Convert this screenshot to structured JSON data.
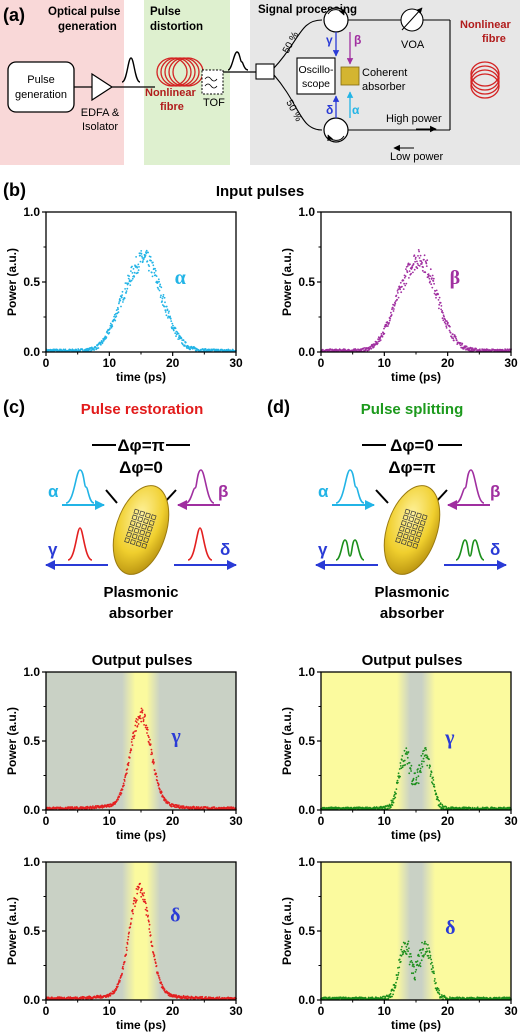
{
  "panel_a": {
    "label": "(a)",
    "sec1": [
      "Optical pulse",
      "generation"
    ],
    "sec2": [
      "Pulse",
      "distortion"
    ],
    "sec3": "Signal processing",
    "pulse_gen": [
      "Pulse",
      "generation"
    ],
    "edfa": [
      "EDFA &",
      "Isolator"
    ],
    "nlf1": [
      "Nonlinear",
      "fibre"
    ],
    "tof": "TOF",
    "split1": "50 %",
    "split2": "50 %",
    "osc": [
      "Oscillo-",
      "scope"
    ],
    "absorber": [
      "Coherent",
      "absorber"
    ],
    "voa": "VOA",
    "nlf2": [
      "Nonlinear",
      "fibre"
    ],
    "high": "High  power",
    "low": "Low power",
    "greek": {
      "gamma": "γ",
      "beta": "β",
      "delta": "δ",
      "alpha": "α"
    },
    "colors": {
      "pink": "#f9d8d8",
      "green": "#def0cf",
      "gray": "#e7e7e7",
      "red": "#b11c1c",
      "absorber": "#d4b531"
    }
  },
  "panel_b": {
    "label": "(b)",
    "title": "Input pulses"
  },
  "panel_c": {
    "label": "(c)",
    "title": "Pulse restoration",
    "phase_top": "Δφ=π",
    "phase_bottom": "Δφ=0",
    "absorber": [
      "Plasmonic",
      "absorber"
    ],
    "title_color": "#e21b1b"
  },
  "panel_d": {
    "label": "(d)",
    "title": "Pulse splitting",
    "phase_top": "Δφ=0",
    "phase_bottom": "Δφ=π",
    "absorber": [
      "Plasmonic",
      "absorber"
    ],
    "title_color": "#1d9a1d"
  },
  "output_title": "Output pulses",
  "chart_data": [
    {
      "id": "alpha",
      "type": "scatter",
      "series": [
        {
          "name": "α",
          "color": "#22b4e6",
          "center": 15.5,
          "width": 2.8,
          "peak": 0.65,
          "shape": "distorted"
        }
      ],
      "xlabel": "time (ps)",
      "ylabel": "Power (a.u.)",
      "xlim": [
        0,
        30
      ],
      "ylim": [
        0,
        1
      ],
      "xticks": [
        0,
        10,
        20,
        30
      ],
      "yticks": [
        0.0,
        0.5,
        1.0
      ],
      "background": "none"
    },
    {
      "id": "beta",
      "type": "scatter",
      "series": [
        {
          "name": "β",
          "color": "#a02fa0",
          "center": 15.5,
          "width": 2.8,
          "peak": 0.65,
          "shape": "distorted"
        }
      ],
      "xlabel": "time (ps)",
      "ylabel": "Power (a.u.)",
      "xlim": [
        0,
        30
      ],
      "ylim": [
        0,
        1
      ],
      "xticks": [
        0,
        10,
        20,
        30
      ],
      "yticks": [
        0.0,
        0.5,
        1.0
      ],
      "background": "none"
    },
    {
      "id": "gamma_c",
      "type": "scatter",
      "series": [
        {
          "name": "γ",
          "color": "#e32020",
          "center": 15,
          "width": 1.6,
          "peak": 0.65,
          "shape": "single"
        }
      ],
      "xlabel": "time (ps)",
      "ylabel": "Power (a.u.)",
      "xlim": [
        0,
        30
      ],
      "ylim": [
        0,
        1
      ],
      "xticks": [
        0,
        10,
        20,
        30
      ],
      "yticks": [
        0.0,
        0.5,
        1.0
      ],
      "background": "gray-center-yellow",
      "band": [
        12,
        18
      ]
    },
    {
      "id": "gamma_d",
      "type": "scatter",
      "series": [
        {
          "name": "γ",
          "color": "#1c8f1c",
          "center": 14.8,
          "width": 1.6,
          "peak": 0.4,
          "shape": "double"
        }
      ],
      "xlabel": "time (ps)",
      "ylabel": "Power (a.u.)",
      "xlim": [
        0,
        30
      ],
      "ylim": [
        0,
        1
      ],
      "xticks": [
        0,
        10,
        20,
        30
      ],
      "yticks": [
        0.0,
        0.5,
        1.0
      ],
      "background": "yellow-center-gray",
      "band": [
        12,
        18
      ]
    },
    {
      "id": "delta_c",
      "type": "scatter",
      "series": [
        {
          "name": "δ",
          "color": "#e32020",
          "center": 14.8,
          "width": 1.6,
          "peak": 0.76,
          "shape": "single"
        }
      ],
      "xlabel": "time (ps)",
      "ylabel": "Power (a.u.)",
      "xlim": [
        0,
        30
      ],
      "ylim": [
        0,
        1
      ],
      "xticks": [
        0,
        10,
        20,
        30
      ],
      "yticks": [
        0.0,
        0.5,
        1.0
      ],
      "background": "gray-center-yellow",
      "band": [
        12,
        18
      ]
    },
    {
      "id": "delta_d",
      "type": "scatter",
      "series": [
        {
          "name": "δ",
          "color": "#1c8f1c",
          "center": 14.8,
          "width": 1.6,
          "peak": 0.4,
          "shape": "double"
        }
      ],
      "xlabel": "time (ps)",
      "ylabel": "Power (a.u.)",
      "xlim": [
        0,
        30
      ],
      "ylim": [
        0,
        1
      ],
      "xticks": [
        0,
        10,
        20,
        30
      ],
      "yticks": [
        0.0,
        0.5,
        1.0
      ],
      "background": "yellow-center-gray",
      "band": [
        12,
        18
      ]
    }
  ]
}
